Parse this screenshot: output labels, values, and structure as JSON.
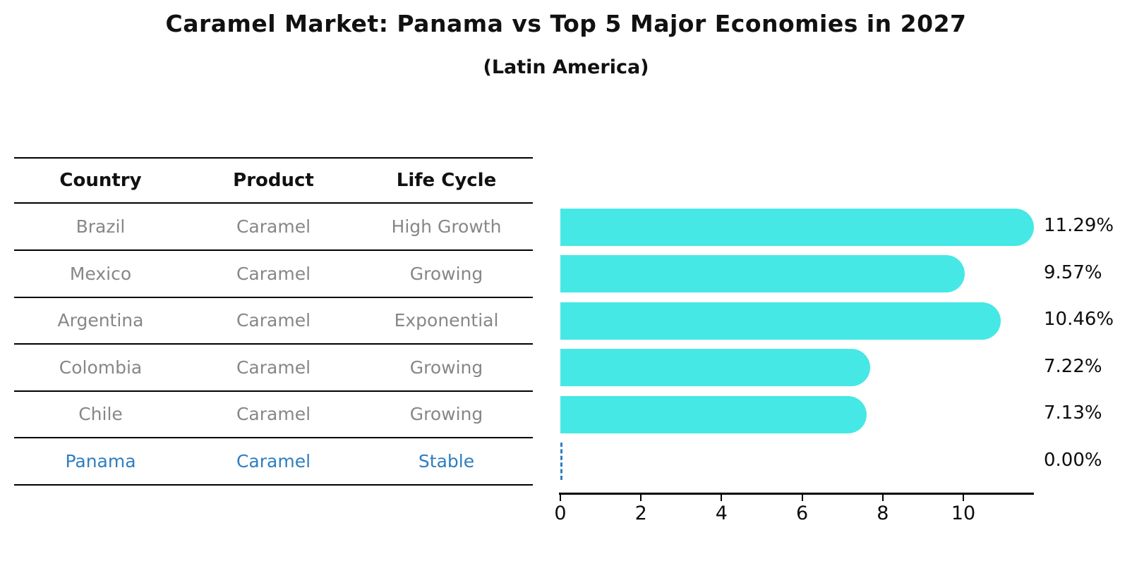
{
  "title": "Caramel Market: Panama vs Top 5 Major Economies in 2027",
  "subtitle": "(Latin America)",
  "table": {
    "headers": [
      "Country",
      "Product",
      "Life Cycle"
    ],
    "rows": [
      {
        "country": "Brazil",
        "product": "Caramel",
        "life_cycle": "High Growth",
        "highlight": false
      },
      {
        "country": "Mexico",
        "product": "Caramel",
        "life_cycle": "Growing",
        "highlight": false
      },
      {
        "country": "Argentina",
        "product": "Caramel",
        "life_cycle": "Exponential",
        "highlight": false
      },
      {
        "country": "Colombia",
        "product": "Caramel",
        "life_cycle": "Growing",
        "highlight": false
      },
      {
        "country": "Chile",
        "product": "Caramel",
        "life_cycle": "Growing",
        "highlight": false
      },
      {
        "country": "Panama",
        "product": "Caramel",
        "life_cycle": "Stable",
        "highlight": true
      }
    ]
  },
  "chart_data": {
    "type": "bar",
    "orientation": "horizontal",
    "title": "Caramel Market: Panama vs Top 5 Major Economies in 2027",
    "subtitle": "(Latin America)",
    "categories": [
      "Brazil",
      "Mexico",
      "Argentina",
      "Colombia",
      "Chile",
      "Panama"
    ],
    "values": [
      11.29,
      9.57,
      10.46,
      7.22,
      7.13,
      0.0
    ],
    "value_labels": [
      "11.29%",
      "9.57%",
      "10.46%",
      "7.22%",
      "7.13%",
      "0.00%"
    ],
    "xlabel": "",
    "ylabel": "",
    "xticks": [
      0,
      2,
      4,
      6,
      8,
      10
    ],
    "xlim": [
      0,
      11.73
    ],
    "grid": false,
    "legend": false,
    "zero_value_style": "dashed-line"
  },
  "colors": {
    "bar": "#45E8E5",
    "highlight_text": "#2F7EC0",
    "zero_dash": "#2F7EC0",
    "table_text": "#878787",
    "header_text": "#111111",
    "axis": "#000000"
  }
}
